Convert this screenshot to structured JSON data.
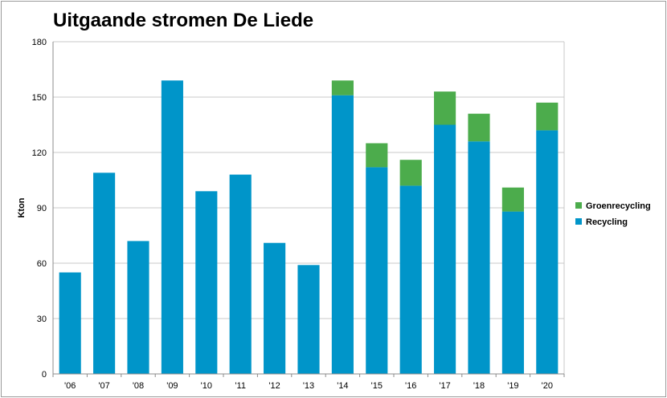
{
  "chart_data": {
    "type": "bar",
    "stacked": true,
    "title": "Uitgaande stromen De Liede",
    "ylabel": "Kton",
    "xlabel": "",
    "ylim": [
      0,
      180
    ],
    "yticks": [
      0,
      30,
      60,
      90,
      120,
      150,
      180
    ],
    "grid": true,
    "legend_position": "right",
    "categories": [
      "'06",
      "'07",
      "'08",
      "'09",
      "'10",
      "'11",
      "'12",
      "'13",
      "'14",
      "'15",
      "'16",
      "'17",
      "'18",
      "'19",
      "'20"
    ],
    "series": [
      {
        "name": "Recycling",
        "color": "#0095c9",
        "values": [
          55,
          109,
          72,
          159,
          99,
          108,
          71,
          59,
          151,
          112,
          102,
          135,
          126,
          88,
          132
        ]
      },
      {
        "name": "Groenrecycling",
        "color": "#4cac4c",
        "values": [
          0,
          0,
          0,
          0,
          0,
          0,
          0,
          0,
          8,
          13,
          14,
          18,
          15,
          13,
          15
        ]
      }
    ]
  }
}
